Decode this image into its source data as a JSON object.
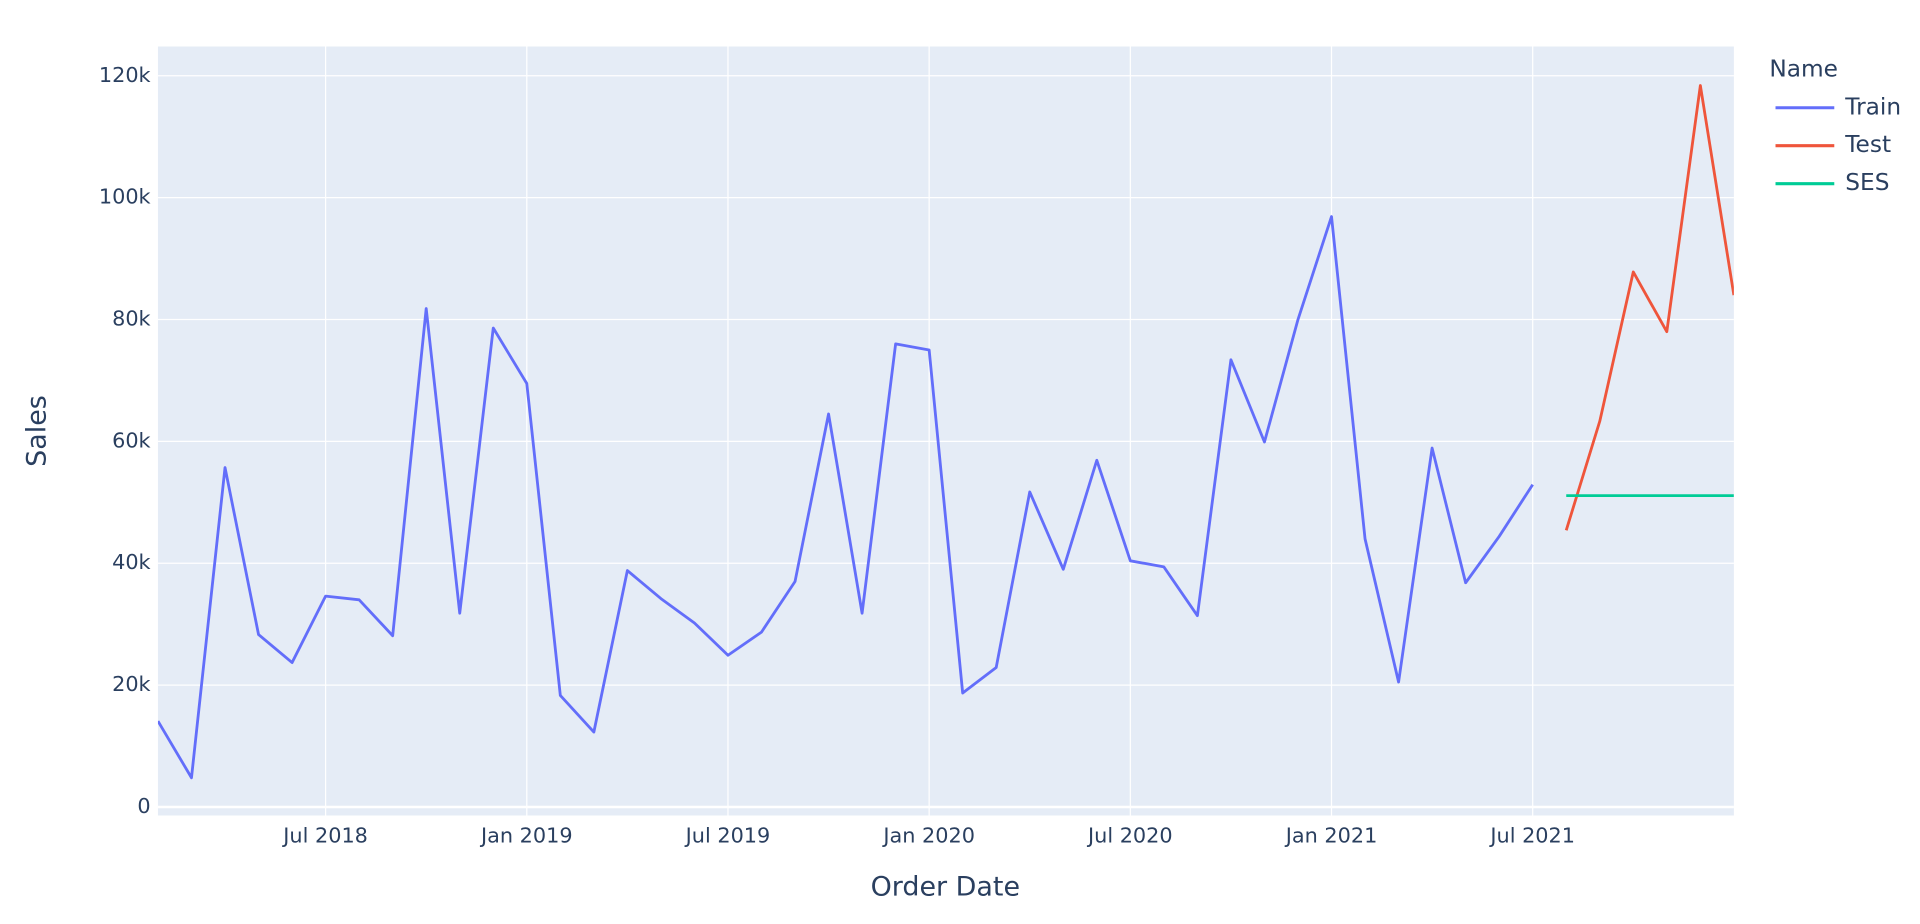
{
  "chart_data": {
    "type": "line",
    "xlabel": "Order Date",
    "ylabel": "Sales",
    "legend_title": "Name",
    "xlim": [
      "2018-02",
      "2022-01"
    ],
    "xticks": [
      {
        "value": "2018-07",
        "label": "Jul 2018"
      },
      {
        "value": "2019-01",
        "label": "Jan 2019"
      },
      {
        "value": "2019-07",
        "label": "Jul 2019"
      },
      {
        "value": "2020-01",
        "label": "Jan 2020"
      },
      {
        "value": "2020-07",
        "label": "Jul 2020"
      },
      {
        "value": "2021-01",
        "label": "Jan 2021"
      },
      {
        "value": "2021-07",
        "label": "Jul 2021"
      }
    ],
    "ylim": [
      -1400,
      124800
    ],
    "yticks": [
      0,
      {
        "value": 20000,
        "label": "20k"
      },
      {
        "value": 40000,
        "label": "40k"
      },
      {
        "value": 60000,
        "label": "60k"
      },
      {
        "value": 80000,
        "label": "80k"
      },
      {
        "value": 100000,
        "label": "100k"
      },
      {
        "value": 120000,
        "label": "120k"
      }
    ],
    "grid": true,
    "legend": "outside-right",
    "series": [
      {
        "name": "Train",
        "color": "#636efa",
        "x": [
          "2018-02",
          "2018-03",
          "2018-04",
          "2018-05",
          "2018-06",
          "2018-07",
          "2018-08",
          "2018-09",
          "2018-10",
          "2018-11",
          "2018-12",
          "2019-01",
          "2019-02",
          "2019-03",
          "2019-04",
          "2019-05",
          "2019-06",
          "2019-07",
          "2019-08",
          "2019-09",
          "2019-10",
          "2019-11",
          "2019-12",
          "2020-01",
          "2020-02",
          "2020-03",
          "2020-04",
          "2020-05",
          "2020-06",
          "2020-07",
          "2020-08",
          "2020-09",
          "2020-10",
          "2020-11",
          "2020-12",
          "2021-01",
          "2021-02",
          "2021-03",
          "2021-04",
          "2021-05",
          "2021-06",
          "2021-07"
        ],
        "values": [
          14100,
          4800,
          55700,
          28300,
          23700,
          34600,
          34000,
          28100,
          81800,
          31800,
          78600,
          69500,
          18300,
          12300,
          38800,
          34200,
          30200,
          24900,
          28700,
          37000,
          64500,
          31800,
          76000,
          75000,
          18700,
          22900,
          51700,
          39000,
          56900,
          40400,
          39400,
          31400,
          73400,
          59900,
          80000,
          96900,
          44000,
          20500,
          58900,
          36800,
          44400,
          52900
        ]
      },
      {
        "name": "Test",
        "color": "#ef553b",
        "x": [
          "2021-08",
          "2021-09",
          "2021-10",
          "2021-11",
          "2021-12",
          "2022-01"
        ],
        "values": [
          45400,
          63300,
          87800,
          78000,
          118400,
          84000
        ]
      },
      {
        "name": "SES",
        "color": "#00cc96",
        "x": [
          "2021-08",
          "2021-09",
          "2021-10",
          "2021-11",
          "2021-12",
          "2022-01"
        ],
        "values": [
          51100,
          51100,
          51100,
          51100,
          51100,
          51100
        ]
      }
    ]
  }
}
